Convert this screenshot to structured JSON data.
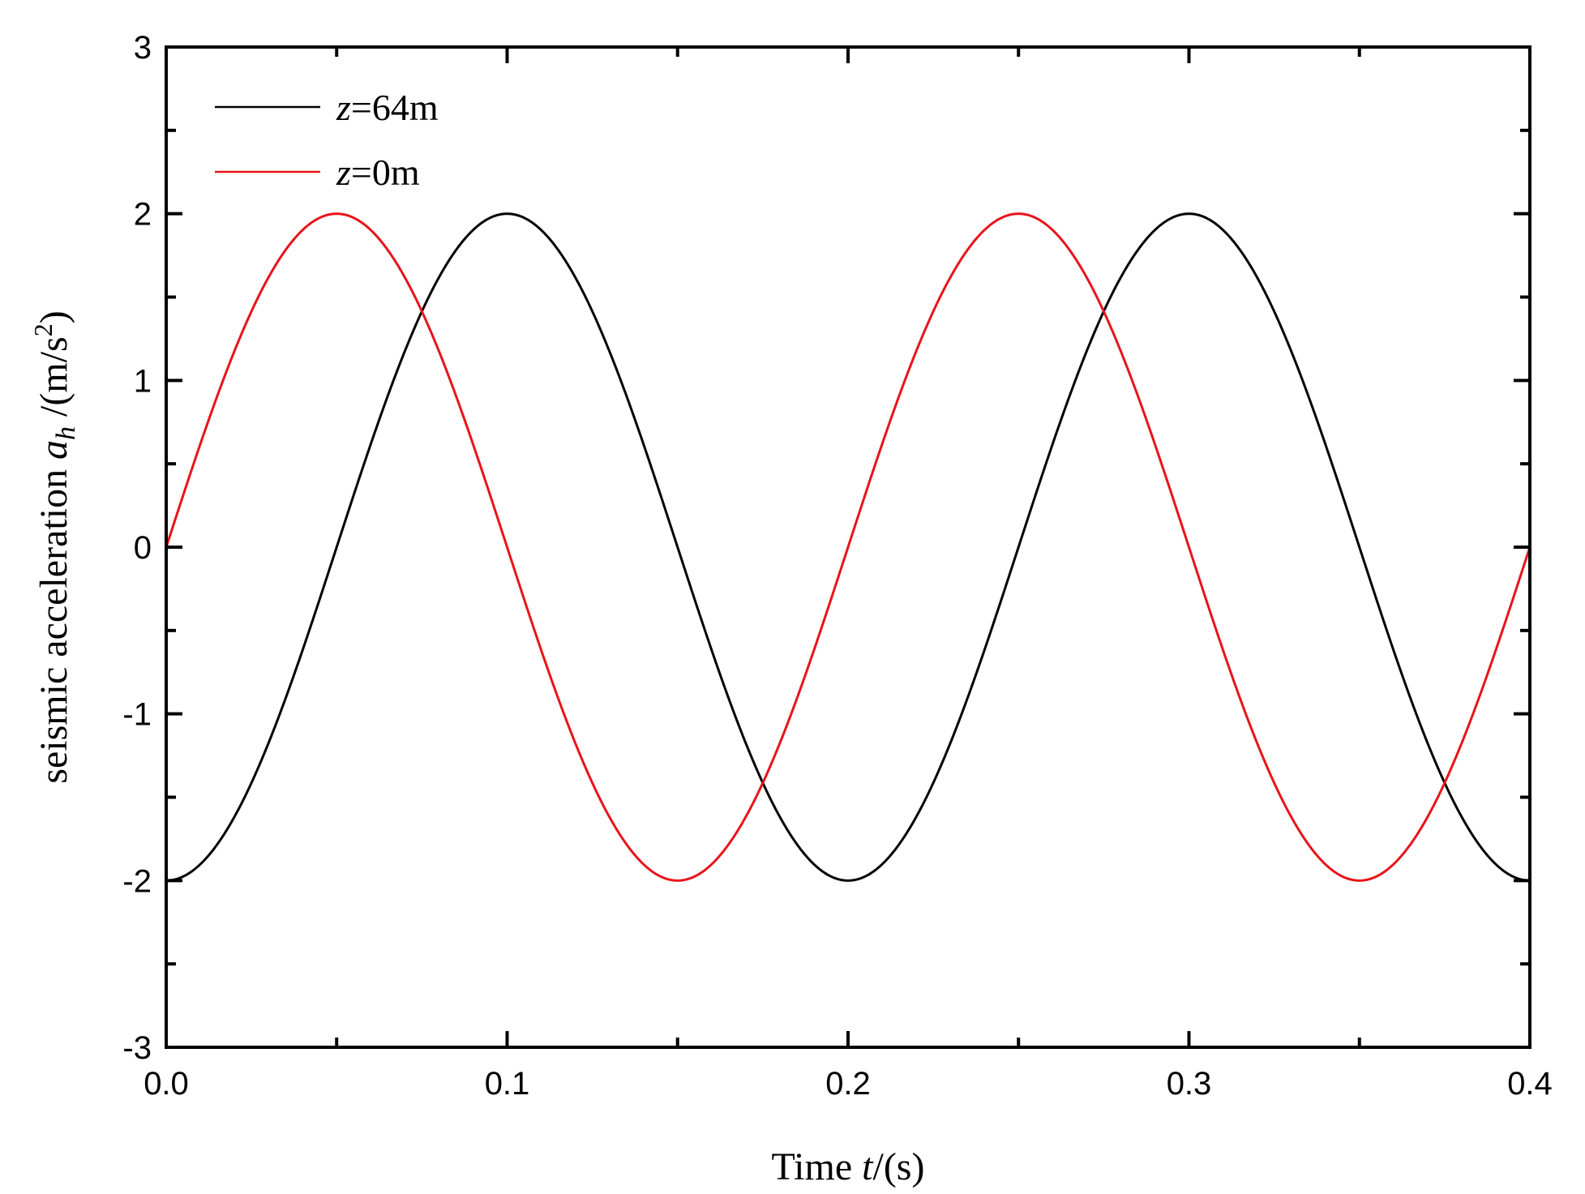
{
  "chart_data": {
    "type": "line",
    "xlabel": {
      "prefix": "Time ",
      "var": "t",
      "suffix": "/(s)"
    },
    "ylabel": {
      "prefix": "seismic acceleration ",
      "var": "a",
      "sub": "h",
      "mid": " /(m/s",
      "sup": "2",
      "suffix": ")"
    },
    "xlim": [
      0,
      0.4
    ],
    "ylim": [
      -3,
      3
    ],
    "xticks": [
      0.0,
      0.1,
      0.2,
      0.3,
      0.4
    ],
    "xtick_labels": [
      "0.0",
      "0.1",
      "0.2",
      "0.3",
      "0.4"
    ],
    "yticks": [
      -3,
      -2,
      -1,
      0,
      1,
      2,
      3
    ],
    "ytick_labels": [
      "-3",
      "-2",
      "-1",
      "0",
      "1",
      "2",
      "3"
    ],
    "grid": false,
    "legend_position": "top-left",
    "series": [
      {
        "name": "z=64m",
        "legend": {
          "var": "z",
          "rest": "=64m"
        },
        "color": "#000000",
        "x": [
          0.0,
          0.025,
          0.05,
          0.075,
          0.1,
          0.125,
          0.15,
          0.175,
          0.2,
          0.225,
          0.25,
          0.275,
          0.3,
          0.325,
          0.35,
          0.375,
          0.4
        ],
        "y": [
          -2.0,
          -1.414,
          0.0,
          1.414,
          2.0,
          1.414,
          0.0,
          -1.414,
          -2.0,
          -1.414,
          0.0,
          1.414,
          2.0,
          1.414,
          0.0,
          -1.414,
          -2.0
        ]
      },
      {
        "name": "z=0m",
        "legend": {
          "var": "z",
          "rest": "=0m"
        },
        "color": "#e8141a",
        "x": [
          0.0,
          0.025,
          0.05,
          0.075,
          0.1,
          0.125,
          0.15,
          0.175,
          0.2,
          0.225,
          0.25,
          0.275,
          0.3,
          0.325,
          0.35,
          0.375,
          0.4
        ],
        "y": [
          0.0,
          1.414,
          2.0,
          1.414,
          0.0,
          -1.414,
          -2.0,
          -1.414,
          0.0,
          1.414,
          2.0,
          1.414,
          0.0,
          -1.414,
          -2.0,
          -1.414,
          0.0
        ]
      }
    ]
  }
}
